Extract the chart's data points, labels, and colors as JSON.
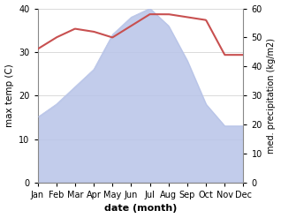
{
  "months": [
    "Jan",
    "Feb",
    "Mar",
    "Apr",
    "May",
    "Jun",
    "Jul",
    "Aug",
    "Sep",
    "Oct",
    "Nov",
    "Dec"
  ],
  "temperature": [
    15,
    18,
    22,
    26,
    34,
    38,
    40,
    36,
    28,
    18,
    13,
    13
  ],
  "precipitation": [
    46,
    50,
    53,
    52,
    50,
    54,
    58,
    58,
    57,
    56,
    44,
    44
  ],
  "temp_fill_color": "#b8c4e8",
  "precip_color": "#c85050",
  "temp_ylim": [
    0,
    40
  ],
  "precip_ylim": [
    0,
    60
  ],
  "xlabel": "date (month)",
  "ylabel_left": "max temp (C)",
  "ylabel_right": "med. precipitation (kg/m2)",
  "background_color": "#ffffff",
  "grid_color": "#cccccc",
  "temp_yticks": [
    0,
    10,
    20,
    30,
    40
  ],
  "precip_yticks": [
    0,
    10,
    20,
    30,
    40,
    50,
    60
  ]
}
